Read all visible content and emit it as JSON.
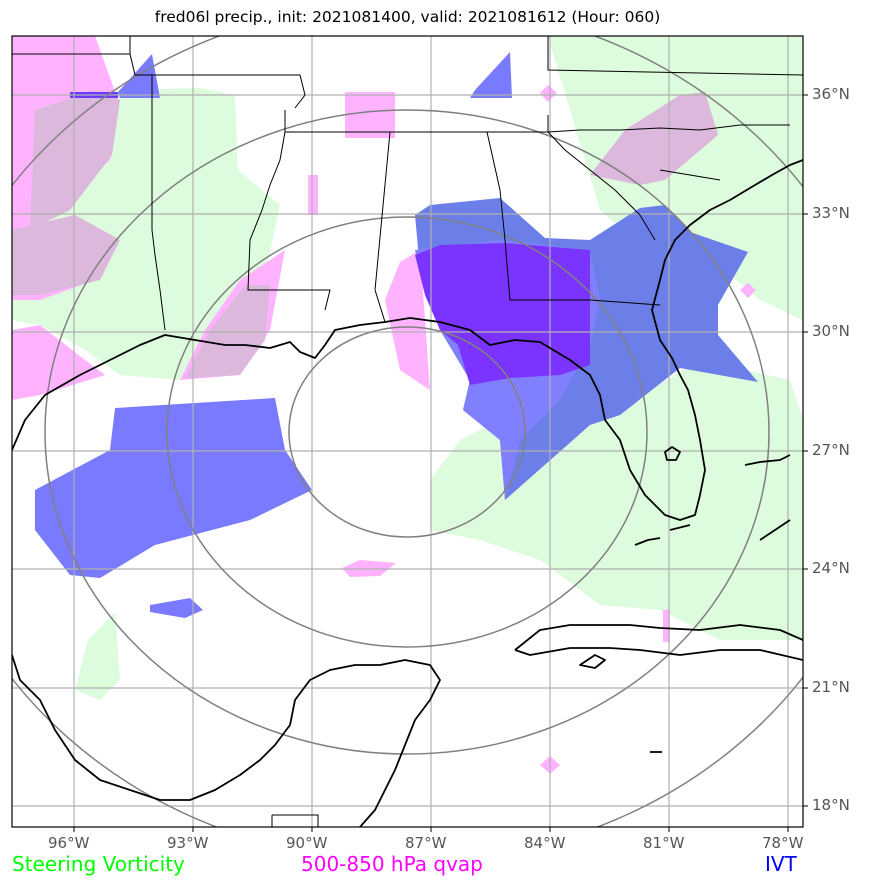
{
  "title": "fred06l precip., init: 2021081400, valid: 2021081612 (Hour: 060)",
  "map": {
    "lon_labels": [
      "96°W",
      "93°W",
      "90°W",
      "87°W",
      "84°W",
      "81°W",
      "78°W"
    ],
    "lat_labels": [
      "36°N",
      "33°N",
      "30°N",
      "27°N",
      "24°N",
      "21°N",
      "18°N"
    ],
    "lon_min": -97.5,
    "lon_max": -77.5,
    "lat_min": 17.5,
    "lat_max": 37.5,
    "range_ring_center": {
      "lon": -87.5,
      "lat": 26.5
    }
  },
  "legend": {
    "vorticity": {
      "label": "Steering Vorticity",
      "color": "#00ff00"
    },
    "qvap": {
      "label": "500-850 hPa qvap",
      "color": "#ff00ff"
    },
    "ivt": {
      "label": "IVT",
      "color": "#0000ff"
    }
  },
  "colors": {
    "vorticity_fill": "#ddfbdd",
    "qvap_fill": "#ffb3ff",
    "ivt_fill": "#8080ff",
    "ivt_strong": "#7b33ff",
    "grid": "#b0b0b0",
    "ring": "#888888"
  }
}
